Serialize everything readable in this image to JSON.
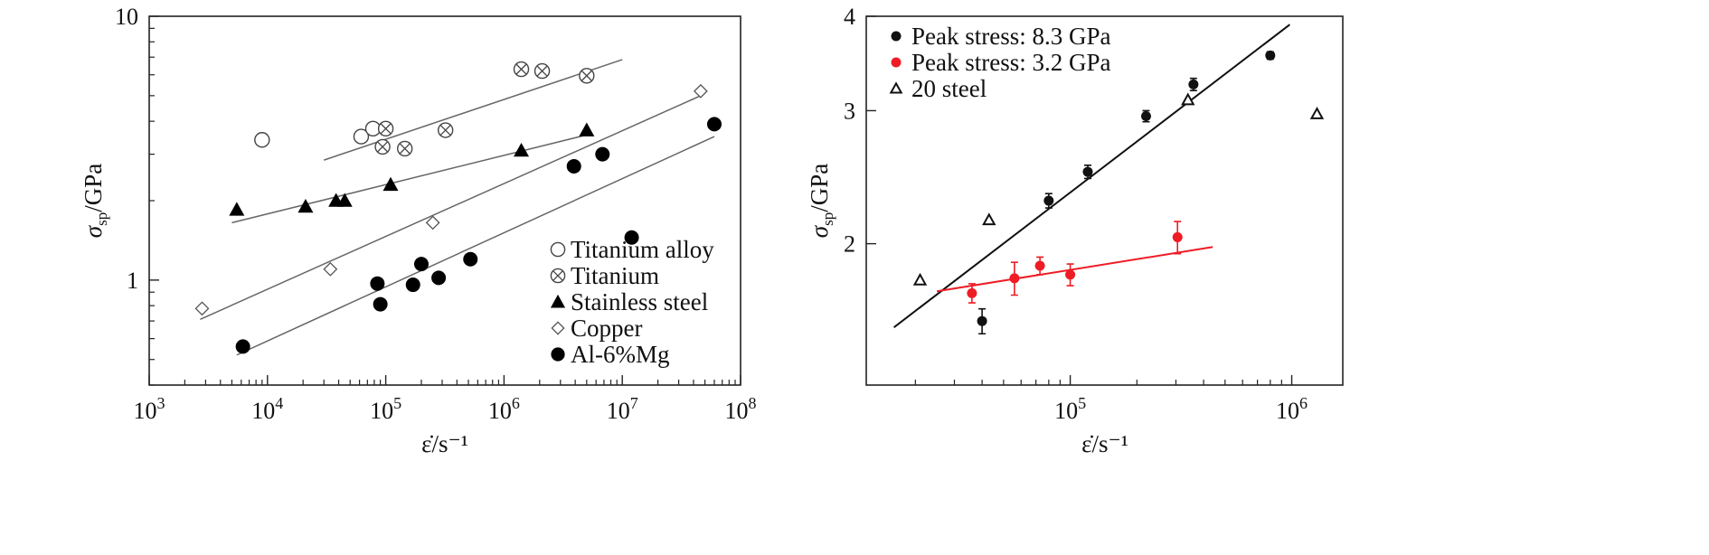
{
  "chart_data": [
    {
      "type": "scatter",
      "scale": "log-log",
      "xlabel": "ε̇/s⁻¹",
      "ylabel_main": "σ",
      "ylabel_sub": "sp",
      "ylabel_unit": "/GPa",
      "xlim": [
        1000,
        100000000
      ],
      "ylim": [
        0.4,
        10
      ],
      "xticks": [
        {
          "value": 1000,
          "base": "10",
          "exp": "3"
        },
        {
          "value": 10000,
          "base": "10",
          "exp": "4"
        },
        {
          "value": 100000,
          "base": "10",
          "exp": "5"
        },
        {
          "value": 1000000,
          "base": "10",
          "exp": "6"
        },
        {
          "value": 10000000,
          "base": "10",
          "exp": "7"
        },
        {
          "value": 100000000,
          "base": "10",
          "exp": "8"
        }
      ],
      "yticks": [
        {
          "value": 1,
          "label": "1"
        },
        {
          "value": 10,
          "label": "10"
        }
      ],
      "legend_position": "bottom-right",
      "series": [
        {
          "name": "Titanium alloy",
          "marker": "open-circle",
          "points": [
            [
              9000,
              3.4
            ],
            [
              62000,
              3.5
            ],
            [
              78000,
              3.75
            ]
          ],
          "fit": null
        },
        {
          "name": "Titanium",
          "marker": "circle-x",
          "points": [
            [
              94000,
              3.2
            ],
            [
              100000,
              3.75
            ],
            [
              145000,
              3.15
            ],
            [
              320000,
              3.7
            ],
            [
              1400000,
              6.3
            ],
            [
              2100000,
              6.2
            ],
            [
              5000000,
              5.95
            ]
          ],
          "fit": [
            [
              30000,
              2.85
            ],
            [
              10000000,
              6.85
            ]
          ]
        },
        {
          "name": "Stainless steel",
          "marker": "filled-triangle",
          "points": [
            [
              5500,
              1.85
            ],
            [
              21000,
              1.9
            ],
            [
              38000,
              2.0
            ],
            [
              45000,
              2.0
            ],
            [
              110000,
              2.3
            ],
            [
              1400000,
              3.1
            ],
            [
              5000000,
              3.7
            ]
          ],
          "fit": [
            [
              5000,
              1.65
            ],
            [
              5000000,
              3.55
            ]
          ]
        },
        {
          "name": "Copper",
          "marker": "open-diamond",
          "points": [
            [
              2800,
              0.78
            ],
            [
              34000,
              1.1
            ],
            [
              250000,
              1.65
            ],
            [
              46000000,
              5.2
            ]
          ],
          "fit": [
            [
              2700,
              0.71
            ],
            [
              46000000,
              5.0
            ]
          ]
        },
        {
          "name": "Al-6%Mg",
          "marker": "filled-circle",
          "points": [
            [
              6200,
              0.56
            ],
            [
              85000,
              0.97
            ],
            [
              90000,
              0.81
            ],
            [
              170000,
              0.96
            ],
            [
              200000,
              1.15
            ],
            [
              280000,
              1.02
            ],
            [
              520000,
              1.2
            ],
            [
              3900000,
              2.7
            ],
            [
              6800000,
              3.0
            ],
            [
              12000000,
              1.45
            ],
            [
              60000000,
              3.9
            ]
          ],
          "fit": [
            [
              5500,
              0.52
            ],
            [
              60000000,
              3.5
            ]
          ]
        }
      ]
    },
    {
      "type": "scatter",
      "scale": "log-log",
      "xlabel": "ε̇/s⁻¹",
      "ylabel_main": "σ",
      "ylabel_sub": "sp",
      "ylabel_unit": "/GPa",
      "xlim": [
        12000,
        1700000
      ],
      "ylim": [
        1.3,
        4.0
      ],
      "xticks": [
        {
          "value": 100000,
          "base": "10",
          "exp": "5"
        },
        {
          "value": 1000000,
          "base": "10",
          "exp": "6"
        }
      ],
      "yticks": [
        {
          "value": 2,
          "label": "2"
        },
        {
          "value": 3,
          "label": "3"
        },
        {
          "value": 4,
          "label": "4"
        }
      ],
      "legend_position": "top-left",
      "series": [
        {
          "name": "Peak stress: 8.3 GPa",
          "marker": "filled-circle-small",
          "color": "#111111",
          "points": [
            [
              40000,
              1.58
            ],
            [
              80000,
              2.28
            ],
            [
              120000,
              2.49
            ],
            [
              220000,
              2.95
            ],
            [
              360000,
              3.25
            ],
            [
              800000,
              3.55
            ]
          ],
          "errors": [
            0.06,
            0.05,
            0.05,
            0.05,
            0.06,
            0.04
          ],
          "fit": [
            [
              16000,
              1.55
            ],
            [
              980000,
              3.9
            ]
          ],
          "fit_color": "#111111"
        },
        {
          "name": "Peak stress: 3.2 GPa",
          "marker": "filled-circle-small",
          "color": "#ee1c25",
          "points": [
            [
              36000,
              1.72
            ],
            [
              56000,
              1.8
            ],
            [
              73000,
              1.87
            ],
            [
              100000,
              1.82
            ],
            [
              305000,
              2.04
            ]
          ],
          "errors": [
            0.05,
            0.09,
            0.05,
            0.06,
            0.1
          ],
          "fit": [
            [
              25000,
              1.73
            ],
            [
              440000,
              1.98
            ]
          ],
          "fit_color": "#ee1c25"
        },
        {
          "name": "20 steel",
          "marker": "open-triangle",
          "color": "#111111",
          "points": [
            [
              21000,
              1.79
            ],
            [
              43000,
              2.15
            ],
            [
              340000,
              3.1
            ],
            [
              1300000,
              2.97
            ]
          ],
          "errors": null,
          "fit": null
        }
      ]
    }
  ]
}
